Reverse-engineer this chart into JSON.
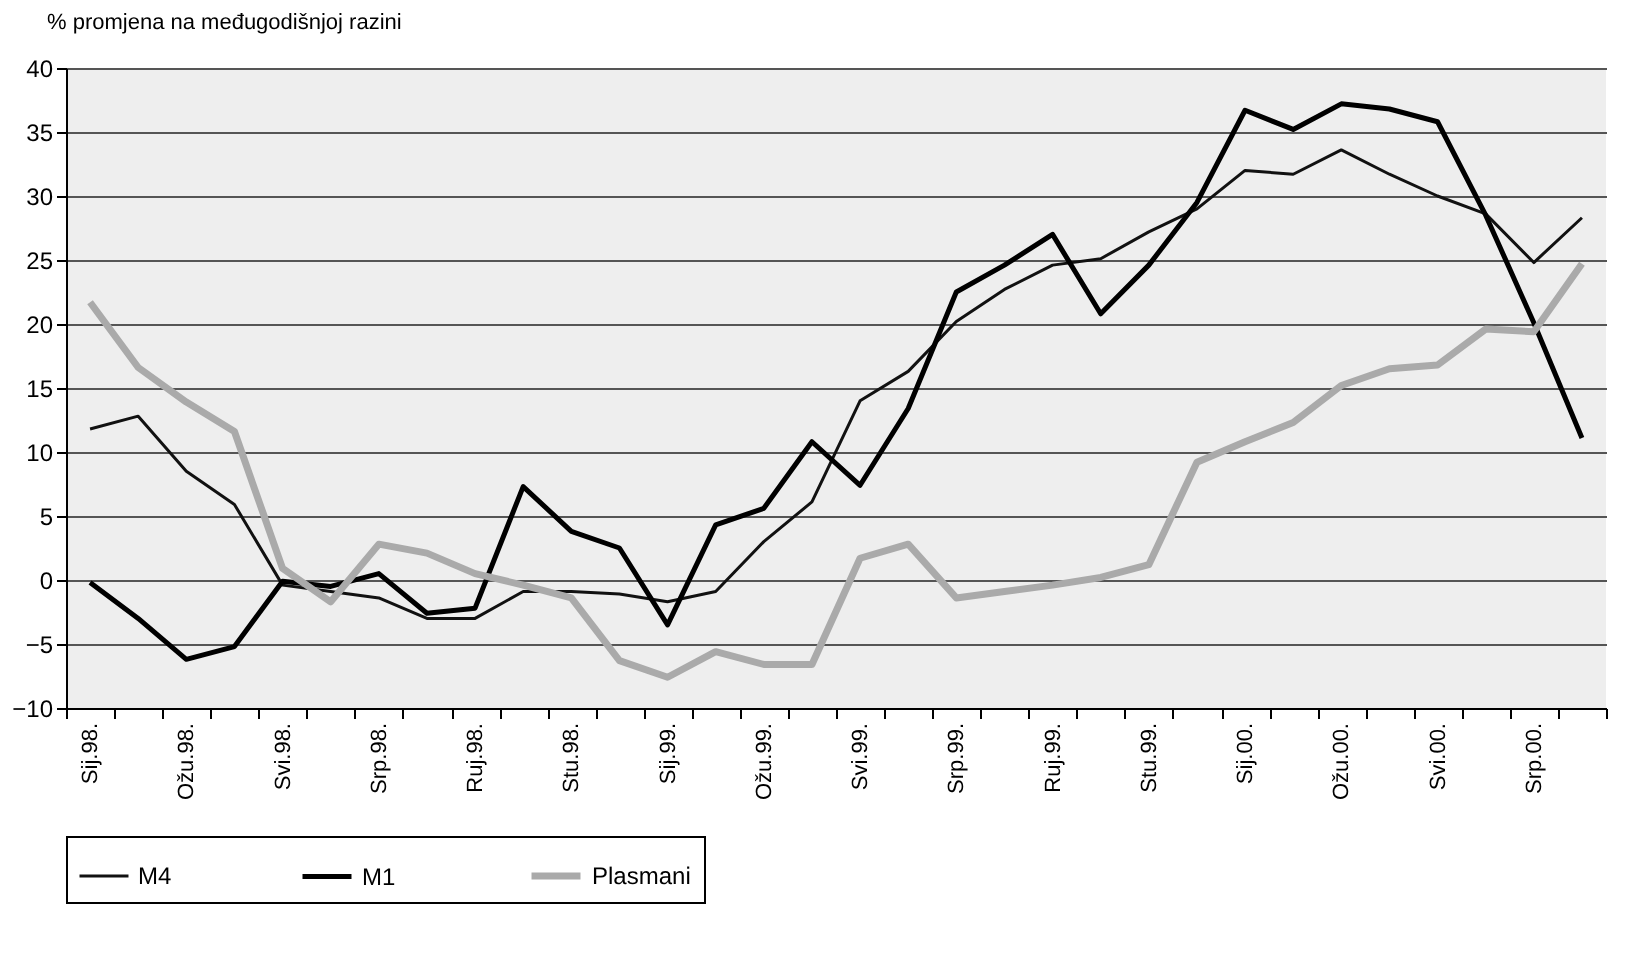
{
  "chart_data": {
    "type": "line",
    "ylabel": "% promjena na međugodišnjoj razini",
    "categories": [
      "Sij.98.",
      null,
      "Ožu.98.",
      null,
      "Svi.98.",
      null,
      "Srp.98.",
      null,
      "Ruj.98.",
      null,
      "Stu.98.",
      null,
      "Sij.99.",
      null,
      "Ožu.99.",
      null,
      "Svi.99.",
      null,
      "Srp.99.",
      null,
      "Ruj.99.",
      null,
      "Stu.99.",
      null,
      "Sij.00.",
      null,
      "Ožu.00.",
      null,
      "Svi.00.",
      null,
      "Srp.00.",
      null
    ],
    "series": [
      {
        "name": "M4",
        "color": "#111111",
        "values": [
          11.8,
          12.8,
          8.5,
          5.9,
          -0.4,
          -0.9,
          -1.4,
          -3.0,
          -3.0,
          -0.9,
          -0.9,
          -1.1,
          -1.7,
          -0.9,
          3.0,
          6.1,
          14.0,
          16.3,
          20.2,
          22.7,
          24.6,
          25.1,
          27.2,
          29.0,
          32.0,
          31.7,
          33.6,
          31.7,
          30.0,
          28.6,
          24.8,
          28.3
        ]
      },
      {
        "name": "M1",
        "color": "#000000",
        "values": [
          -0.2,
          -3.0,
          -6.2,
          -5.2,
          -0.1,
          -0.5,
          0.5,
          -2.6,
          -2.2,
          7.3,
          3.8,
          2.5,
          -3.5,
          4.3,
          5.6,
          10.8,
          7.4,
          13.4,
          22.5,
          24.6,
          27.0,
          20.8,
          24.6,
          29.5,
          36.7,
          35.2,
          37.2,
          36.8,
          35.8,
          28.5,
          20.1,
          11.1
        ]
      },
      {
        "name": "Plasmani",
        "color": "#aaaaaa",
        "values": [
          21.7,
          16.6,
          13.9,
          11.6,
          0.9,
          -1.7,
          2.8,
          2.1,
          0.5,
          -0.4,
          -1.4,
          -6.3,
          -7.6,
          -5.6,
          -6.6,
          -6.6,
          1.7,
          2.8,
          -1.4,
          -0.9,
          -0.4,
          0.2,
          1.2,
          9.2,
          10.8,
          12.3,
          15.2,
          16.5,
          16.8,
          19.6,
          19.4,
          24.7
        ]
      }
    ],
    "ylim": [
      -10,
      40
    ],
    "yticks": [
      -10,
      -5,
      0,
      5,
      10,
      15,
      20,
      25,
      30,
      35,
      40
    ],
    "grid": "y",
    "legend": "bottom"
  }
}
